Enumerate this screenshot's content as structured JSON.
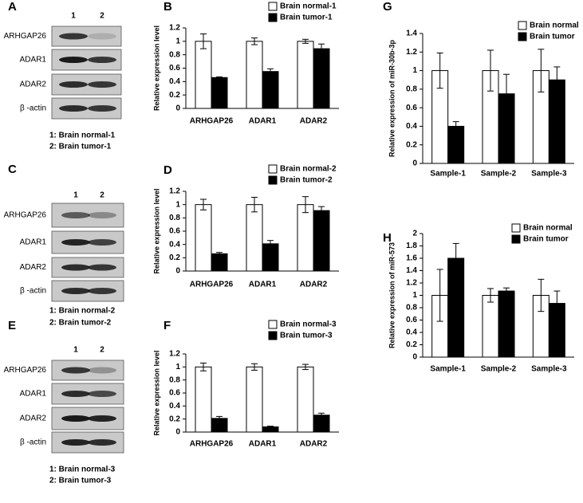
{
  "blots": [
    {
      "panel": "A",
      "lanes": [
        "1",
        "2"
      ],
      "proteins": [
        "ARHGAP26",
        "ADAR1",
        "ADAR2",
        "β -actin"
      ],
      "captions": [
        "1: Brain normal-1",
        "2: Brain tumor-1"
      ]
    },
    {
      "panel": "C",
      "lanes": [
        "1",
        "2"
      ],
      "proteins": [
        "ARHGAP26",
        "ADAR1",
        "ADAR2",
        "β -actin"
      ],
      "captions": [
        "1: Brain normal-2",
        "2: Brain tumor-2"
      ]
    },
    {
      "panel": "E",
      "lanes": [
        "1",
        "2"
      ],
      "proteins": [
        "ARHGAP26",
        "ADAR1",
        "ADAR2",
        "β -actin"
      ],
      "captions": [
        "1: Brain normal-3",
        "2: Brain tumor-3"
      ]
    }
  ],
  "chart_data": [
    {
      "type": "bar",
      "panel": "B",
      "ylabel": "Relative expression level",
      "categories": [
        "ARHGAP26",
        "ADAR1",
        "ADAR2"
      ],
      "series": [
        {
          "name": "Brain normal-1",
          "color": "#ffffff",
          "values": [
            1,
            1,
            1
          ],
          "errors": [
            0.11,
            0.05,
            0.03
          ]
        },
        {
          "name": "Brain tumor-1",
          "color": "#000000",
          "values": [
            0.46,
            0.55,
            0.89
          ],
          "errors": [
            0.01,
            0.04,
            0.07
          ]
        }
      ],
      "ylim": [
        0,
        1.2
      ],
      "yticks": [
        0,
        0.2,
        0.4,
        0.6,
        0.8,
        1,
        1.2
      ]
    },
    {
      "type": "bar",
      "panel": "D",
      "ylabel": "Relative expression level",
      "categories": [
        "ARHGAP26",
        "ADAR1",
        "ADAR2"
      ],
      "series": [
        {
          "name": "Brain normal-2",
          "color": "#ffffff",
          "values": [
            1,
            1,
            1
          ],
          "errors": [
            0.08,
            0.11,
            0.12
          ]
        },
        {
          "name": "Brain tumor-2",
          "color": "#000000",
          "values": [
            0.26,
            0.41,
            0.91
          ],
          "errors": [
            0.02,
            0.05,
            0.06
          ]
        }
      ],
      "ylim": [
        0,
        1.2
      ],
      "yticks": [
        0,
        0.2,
        0.4,
        0.6,
        0.8,
        1,
        1.2
      ]
    },
    {
      "type": "bar",
      "panel": "F",
      "ylabel": "Relative expression level",
      "categories": [
        "ARHGAP26",
        "ADAR1",
        "ADAR2"
      ],
      "series": [
        {
          "name": "Brain normal-3",
          "color": "#ffffff",
          "values": [
            1,
            1,
            1
          ],
          "errors": [
            0.06,
            0.05,
            0.04
          ]
        },
        {
          "name": "Brain tumor-3",
          "color": "#000000",
          "values": [
            0.21,
            0.08,
            0.26
          ],
          "errors": [
            0.03,
            0.01,
            0.03
          ]
        }
      ],
      "ylim": [
        0,
        1.2
      ],
      "yticks": [
        0,
        0.2,
        0.4,
        0.6,
        0.8,
        1,
        1.2
      ]
    },
    {
      "type": "bar",
      "panel": "G",
      "ylabel": "Relative expression of miR-30b-3p",
      "categories": [
        "Sample-1",
        "Sample-2",
        "Sample-3"
      ],
      "series": [
        {
          "name": "Brain normal",
          "color": "#ffffff",
          "values": [
            1,
            1,
            1
          ],
          "errors": [
            0.19,
            0.22,
            0.23
          ]
        },
        {
          "name": "Brain tumor",
          "color": "#000000",
          "values": [
            0.4,
            0.75,
            0.9
          ],
          "errors": [
            0.05,
            0.21,
            0.14
          ]
        }
      ],
      "ylim": [
        0,
        1.4
      ],
      "yticks": [
        0,
        0.2,
        0.4,
        0.6,
        0.8,
        1,
        1.2,
        1.4
      ]
    },
    {
      "type": "bar",
      "panel": "H",
      "ylabel": "Relative expression of miR-573",
      "categories": [
        "Sample-1",
        "Sample-2",
        "Sample-3"
      ],
      "series": [
        {
          "name": "Brain normal",
          "color": "#ffffff",
          "values": [
            1,
            1,
            1
          ],
          "errors": [
            0.42,
            0.11,
            0.26
          ]
        },
        {
          "name": "Brain tumor",
          "color": "#000000",
          "values": [
            1.6,
            1.07,
            0.87
          ],
          "errors": [
            0.24,
            0.05,
            0.2
          ]
        }
      ],
      "ylim": [
        0,
        2
      ],
      "yticks": [
        0,
        0.2,
        0.4,
        0.6,
        0.8,
        1,
        1.2,
        1.4,
        1.6,
        1.8,
        2
      ]
    }
  ]
}
